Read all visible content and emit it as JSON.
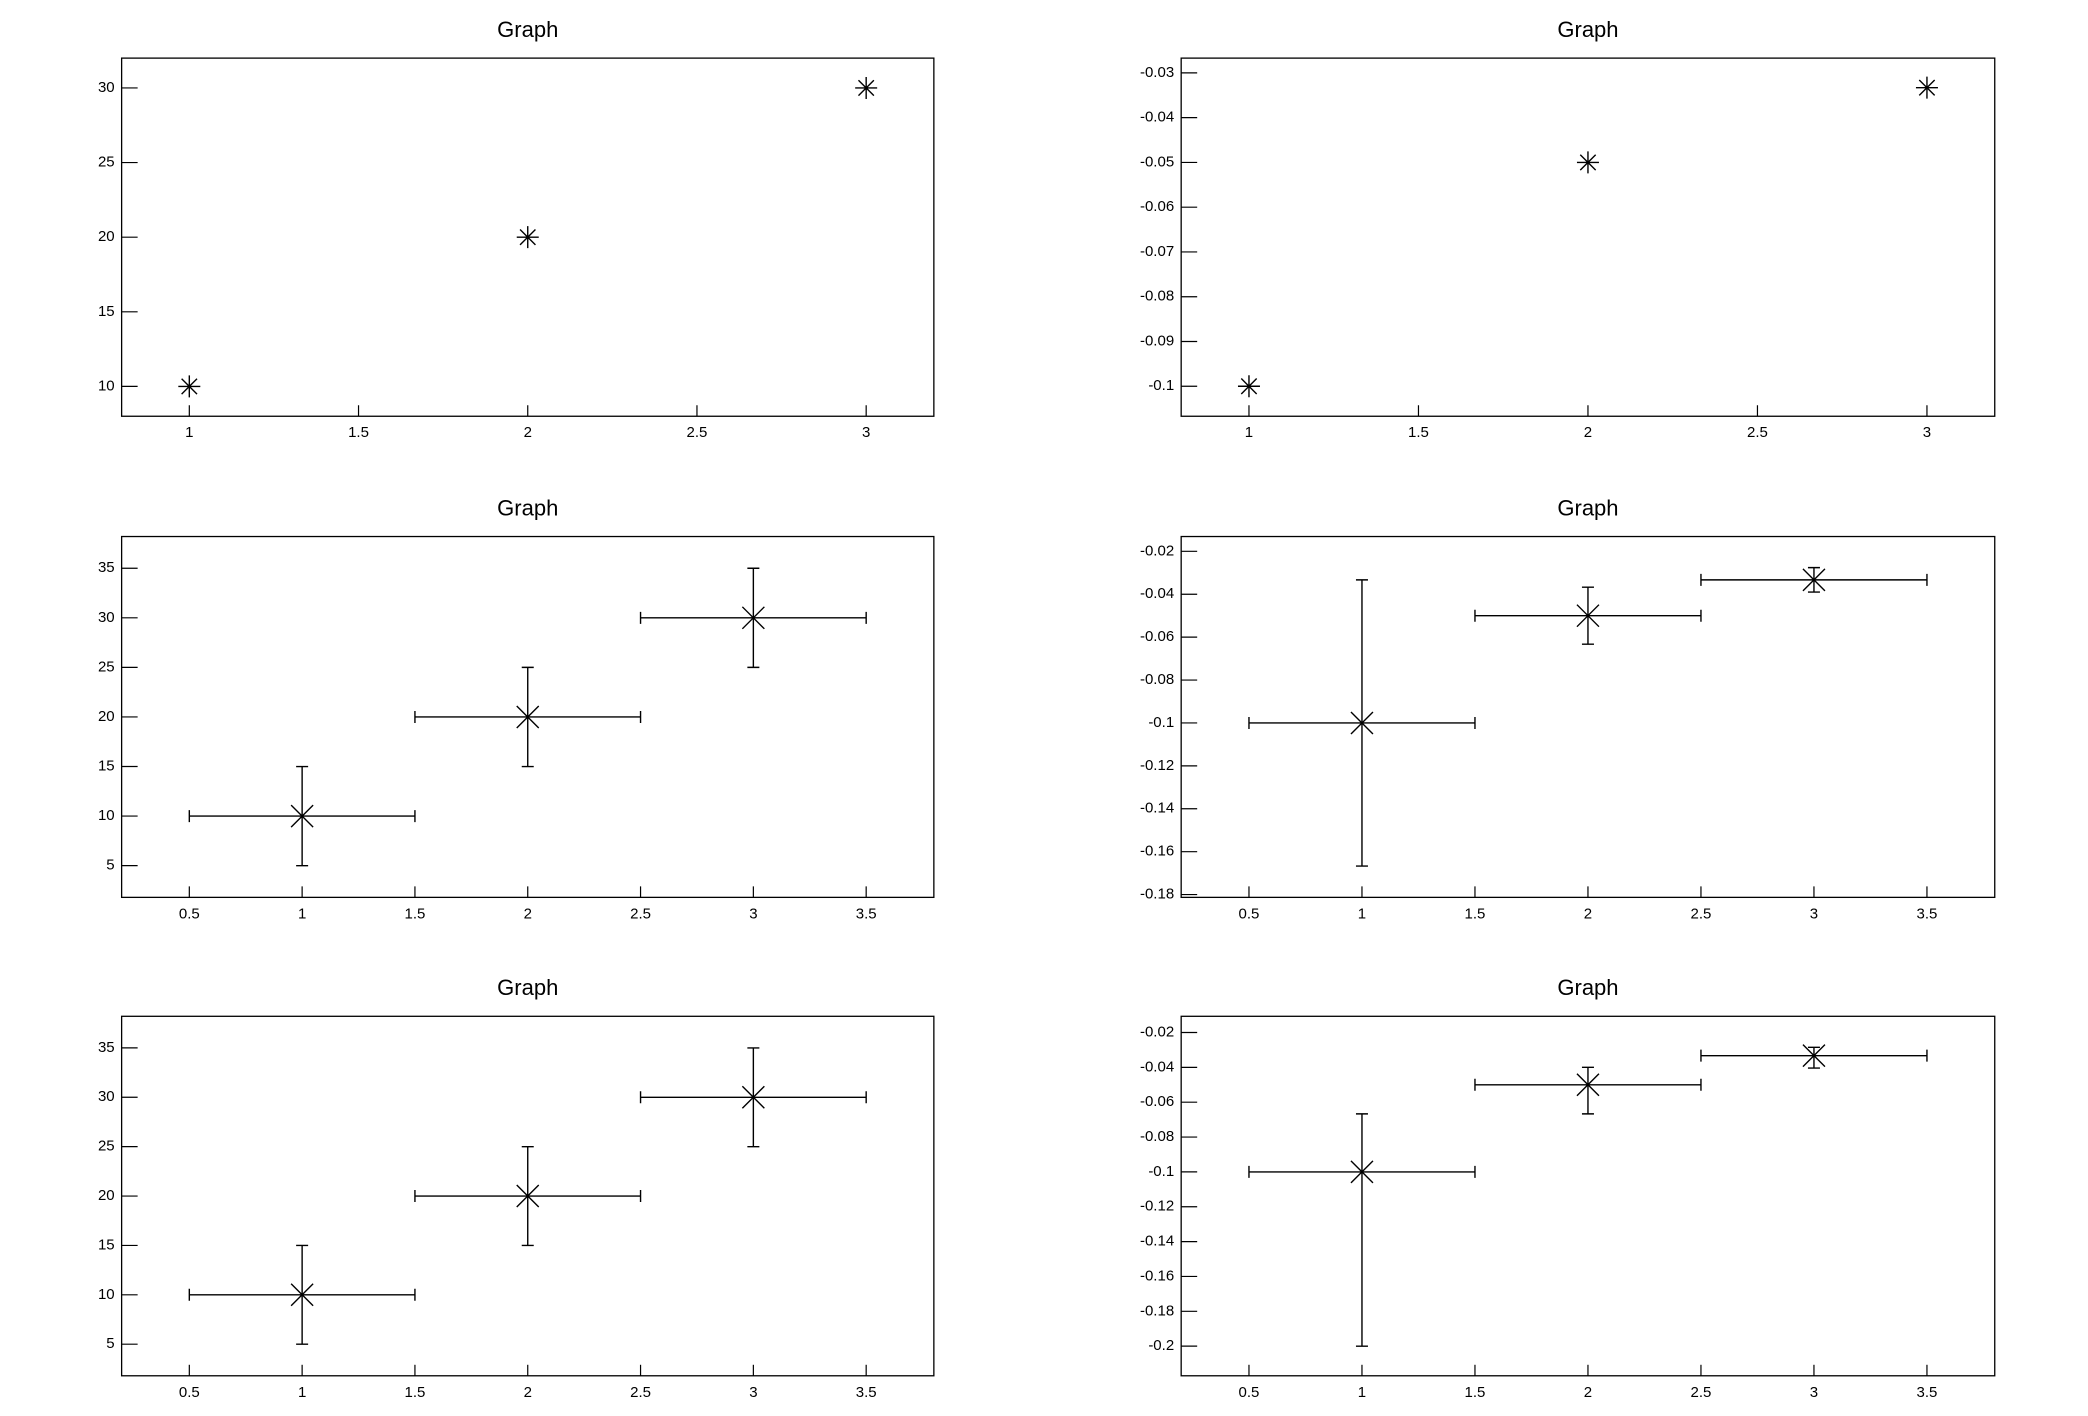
{
  "chart_data": [
    {
      "type": "scatter",
      "title": "Graph",
      "marker": "star",
      "color": "#000000",
      "x": [
        1,
        2,
        3
      ],
      "values": [
        10,
        20,
        30
      ],
      "xlim": [
        0.8,
        3.2
      ],
      "xticks": [
        1,
        1.5,
        2,
        2.5,
        3
      ],
      "ylim": [
        8,
        32
      ],
      "yticks": [
        10,
        15,
        20,
        25,
        30
      ]
    },
    {
      "type": "scatter",
      "title": "Graph",
      "marker": "star",
      "color": "#000000",
      "x": [
        1,
        2,
        3
      ],
      "values": [
        -0.1,
        -0.05,
        -0.0333
      ],
      "xlim": [
        0.8,
        3.2
      ],
      "xticks": [
        1,
        1.5,
        2,
        2.5,
        3
      ],
      "ylim": [
        -0.1067,
        -0.0267
      ],
      "yticks": [
        -0.1,
        -0.09,
        -0.08,
        -0.07,
        -0.06,
        -0.05,
        -0.04,
        -0.03
      ]
    },
    {
      "type": "scatter",
      "title": "Graph",
      "marker": "cross",
      "color": "#000000",
      "x": [
        1,
        2,
        3
      ],
      "values": [
        10,
        20,
        30
      ],
      "x_errors": [
        0.5,
        0.5,
        0.5
      ],
      "y_errors": [
        5,
        5,
        5
      ],
      "xlim": [
        0.2,
        3.8
      ],
      "xticks": [
        0.5,
        1,
        1.5,
        2,
        2.5,
        3,
        3.5
      ],
      "ylim": [
        1.8,
        38.2
      ],
      "yticks": [
        5,
        10,
        15,
        20,
        25,
        30,
        35
      ]
    },
    {
      "type": "scatter",
      "title": "Graph",
      "marker": "cross",
      "color": "#000000",
      "x": [
        1,
        2,
        3
      ],
      "values": [
        -0.1,
        -0.05,
        -0.0333
      ],
      "x_errors": [
        0.5,
        0.5,
        0.5
      ],
      "y_errors": [
        0.0667,
        0.0133,
        0.0057
      ],
      "xlim": [
        0.2,
        3.8
      ],
      "xticks": [
        0.5,
        1,
        1.5,
        2,
        2.5,
        3,
        3.5
      ],
      "ylim": [
        -0.1813,
        -0.0131
      ],
      "yticks": [
        -0.18,
        -0.16,
        -0.14,
        -0.12,
        -0.1,
        -0.08,
        -0.06,
        -0.04,
        -0.02
      ]
    },
    {
      "type": "scatter",
      "title": "Graph",
      "marker": "cross",
      "color": "#000000",
      "x": [
        1,
        2,
        3
      ],
      "values": [
        10,
        20,
        30
      ],
      "x_errors": [
        0.5,
        0.5,
        0.5
      ],
      "y_errors": [
        5,
        5,
        5
      ],
      "xlim": [
        0.2,
        3.8
      ],
      "xticks": [
        0.5,
        1,
        1.5,
        2,
        2.5,
        3,
        3.5
      ],
      "ylim": [
        1.8,
        38.2
      ],
      "yticks": [
        5,
        10,
        15,
        20,
        25,
        30,
        35
      ]
    },
    {
      "type": "scatter",
      "title": "Graph",
      "marker": "cross",
      "color": "#000000",
      "x": [
        1,
        2,
        3
      ],
      "values": [
        -0.1,
        -0.05,
        -0.0333
      ],
      "x_errors": [
        0.5,
        0.5,
        0.5
      ],
      "y_errors_low": [
        0.1,
        0.0167,
        0.0071
      ],
      "y_errors_high": [
        0.0333,
        0.01,
        0.0048
      ],
      "xlim": [
        0.2,
        3.8
      ],
      "xticks": [
        0.5,
        1,
        1.5,
        2,
        2.5,
        3,
        3.5
      ],
      "ylim": [
        -0.217,
        -0.0107
      ],
      "yticks": [
        -0.2,
        -0.18,
        -0.16,
        -0.14,
        -0.12,
        -0.1,
        -0.08,
        -0.06,
        -0.04,
        -0.02
      ]
    }
  ]
}
